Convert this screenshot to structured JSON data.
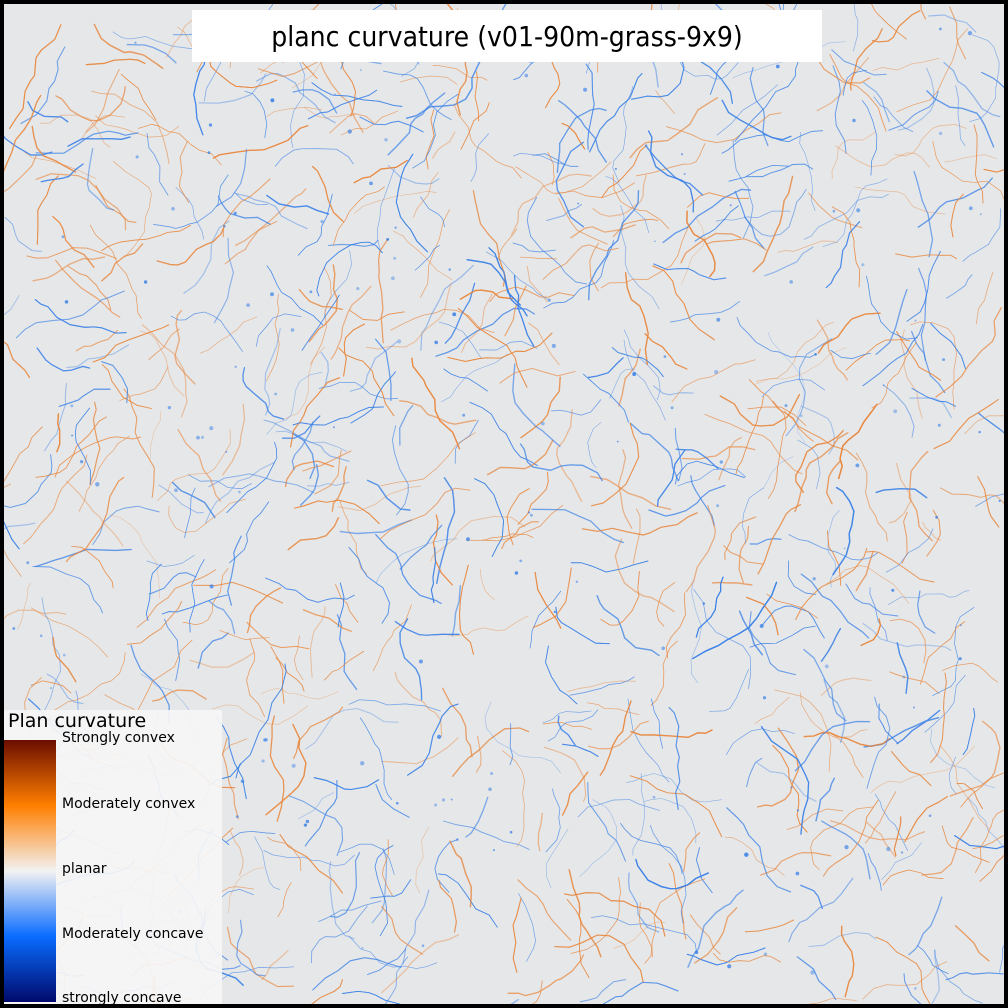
{
  "title": "planc curvature (v01-90m-grass-9x9)",
  "legend": {
    "title": "Plan curvature",
    "entries": [
      {
        "label": "Strongly convex",
        "color": "#6b0d00"
      },
      {
        "label": "Moderately convex",
        "color": "#ff7f00"
      },
      {
        "label": "planar",
        "color": "#f2f2f2"
      },
      {
        "label": "Moderately concave",
        "color": "#0a6cff"
      },
      {
        "label": "strongly concave",
        "color": "#000a6b"
      }
    ]
  },
  "colors": {
    "background": "#e6e7e8",
    "convex": "#e8863c",
    "concave": "#3b82e8",
    "frame": "#000000"
  }
}
